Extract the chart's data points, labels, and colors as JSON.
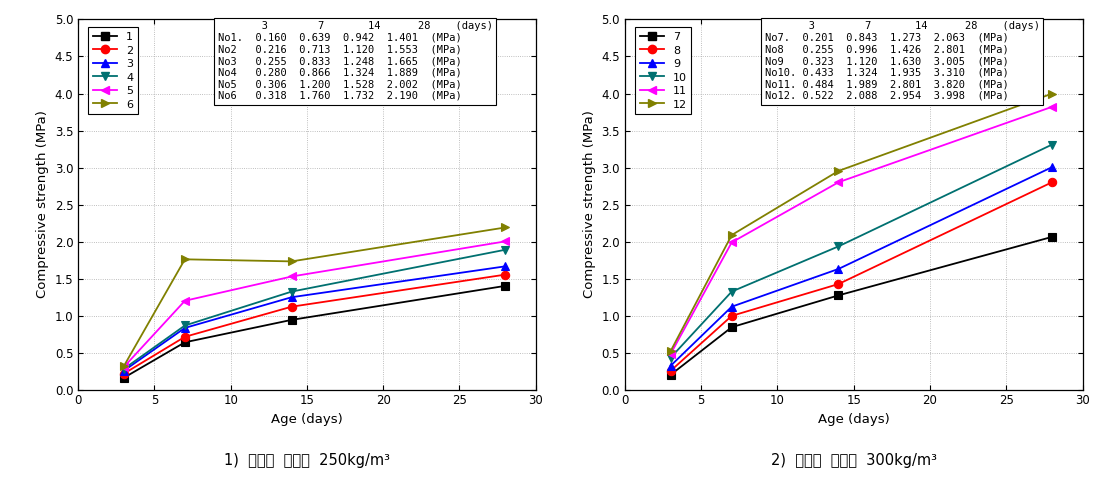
{
  "plot1": {
    "title": "1)  고화제  사용량  250kg/m³",
    "days": [
      3,
      7,
      14,
      28
    ],
    "series": [
      {
        "label": "1",
        "color": "#000000",
        "marker": "s",
        "values": [
          0.16,
          0.639,
          0.942,
          1.401
        ]
      },
      {
        "label": "2",
        "color": "#ff0000",
        "marker": "o",
        "values": [
          0.216,
          0.713,
          1.12,
          1.553
        ]
      },
      {
        "label": "3",
        "color": "#0000ff",
        "marker": "^",
        "values": [
          0.255,
          0.833,
          1.248,
          1.665
        ]
      },
      {
        "label": "4",
        "color": "#007070",
        "marker": "v",
        "values": [
          0.28,
          0.866,
          1.324,
          1.889
        ]
      },
      {
        "label": "5",
        "color": "#ff00ff",
        "marker": "<",
        "values": [
          0.306,
          1.2,
          1.528,
          2.002
        ]
      },
      {
        "label": "6",
        "color": "#808000",
        "marker": ">",
        "values": [
          0.318,
          1.76,
          1.732,
          2.19
        ]
      }
    ],
    "table_rows": [
      [
        "No1.",
        "0.160",
        "0.639",
        "0.942",
        "1.401",
        "(MPa)"
      ],
      [
        "No2",
        "0.216",
        "0.713",
        "1.120",
        "1.553",
        "(MPa)"
      ],
      [
        "No3",
        "0.255",
        "0.833",
        "1.248",
        "1.665",
        "(MPa)"
      ],
      [
        "No4",
        "0.280",
        "0.866",
        "1.324",
        "1.889",
        "(MPa)"
      ],
      [
        "No5",
        "0.306",
        "1.200",
        "1.528",
        "2.002",
        "(MPa)"
      ],
      [
        "No6",
        "0.318",
        "1.760",
        "1.732",
        "2.190",
        "(MPa)"
      ]
    ],
    "ylim": [
      0.0,
      5.0
    ],
    "yticks": [
      0.0,
      0.5,
      1.0,
      1.5,
      2.0,
      2.5,
      3.0,
      3.5,
      4.0,
      4.5,
      5.0
    ],
    "xlim": [
      0,
      30
    ],
    "xticks": [
      0,
      5,
      10,
      15,
      20,
      25,
      30
    ]
  },
  "plot2": {
    "title": "2)  고화제  사용량  300kg/m³",
    "days": [
      3,
      7,
      14,
      28
    ],
    "series": [
      {
        "label": "7",
        "color": "#000000",
        "marker": "s",
        "values": [
          0.201,
          0.843,
          1.273,
          2.063
        ]
      },
      {
        "label": "8",
        "color": "#ff0000",
        "marker": "o",
        "values": [
          0.255,
          0.996,
          1.426,
          2.801
        ]
      },
      {
        "label": "9",
        "color": "#0000ff",
        "marker": "^",
        "values": [
          0.323,
          1.12,
          1.63,
          3.005
        ]
      },
      {
        "label": "10",
        "color": "#007070",
        "marker": "v",
        "values": [
          0.433,
          1.324,
          1.935,
          3.31
        ]
      },
      {
        "label": "11",
        "color": "#ff00ff",
        "marker": "<",
        "values": [
          0.484,
          1.989,
          2.801,
          3.82
        ]
      },
      {
        "label": "12",
        "color": "#808000",
        "marker": ">",
        "values": [
          0.522,
          2.088,
          2.954,
          3.998
        ]
      }
    ],
    "table_rows": [
      [
        "No7.",
        "0.201",
        "0.843",
        "1.273",
        "2.063",
        "(MPa)"
      ],
      [
        "No8",
        "0.255",
        "0.996",
        "1.426",
        "2.801",
        "(MPa)"
      ],
      [
        "No9",
        "0.323",
        "1.120",
        "1.630",
        "3.005",
        "(MPa)"
      ],
      [
        "No10.",
        "0.433",
        "1.324",
        "1.935",
        "3.310",
        "(MPa)"
      ],
      [
        "No11.",
        "0.484",
        "1.989",
        "2.801",
        "3.820",
        "(MPa)"
      ],
      [
        "No12.",
        "0.522",
        "2.088",
        "2.954",
        "3.998",
        "(MPa)"
      ]
    ],
    "ylim": [
      0.0,
      5.0
    ],
    "yticks": [
      0.0,
      0.5,
      1.0,
      1.5,
      2.0,
      2.5,
      3.0,
      3.5,
      4.0,
      4.5,
      5.0
    ],
    "xlim": [
      0,
      30
    ],
    "xticks": [
      0,
      5,
      10,
      15,
      20,
      25,
      30
    ]
  },
  "ylabel": "Compressive strength (MPa)",
  "xlabel": "Age (days)",
  "table_header_days": "3       7      14      28    (days)"
}
